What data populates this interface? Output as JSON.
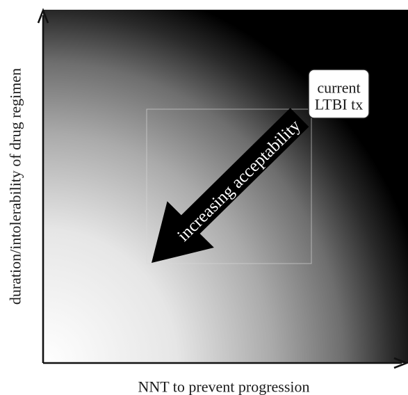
{
  "diagram": {
    "x_axis_label": "NNT to prevent progression",
    "y_axis_label": "duration/intolerability of drug regimen",
    "arrow_label": "increasing acceptability",
    "callout": {
      "line1": "current",
      "line2": "LTBI tx"
    },
    "colors": {
      "gradient_light": "#ffffff",
      "gradient_mid": "#8a8a8a",
      "gradient_dark": "#000000",
      "arrow": "#000000",
      "axis": "#111111"
    }
  }
}
